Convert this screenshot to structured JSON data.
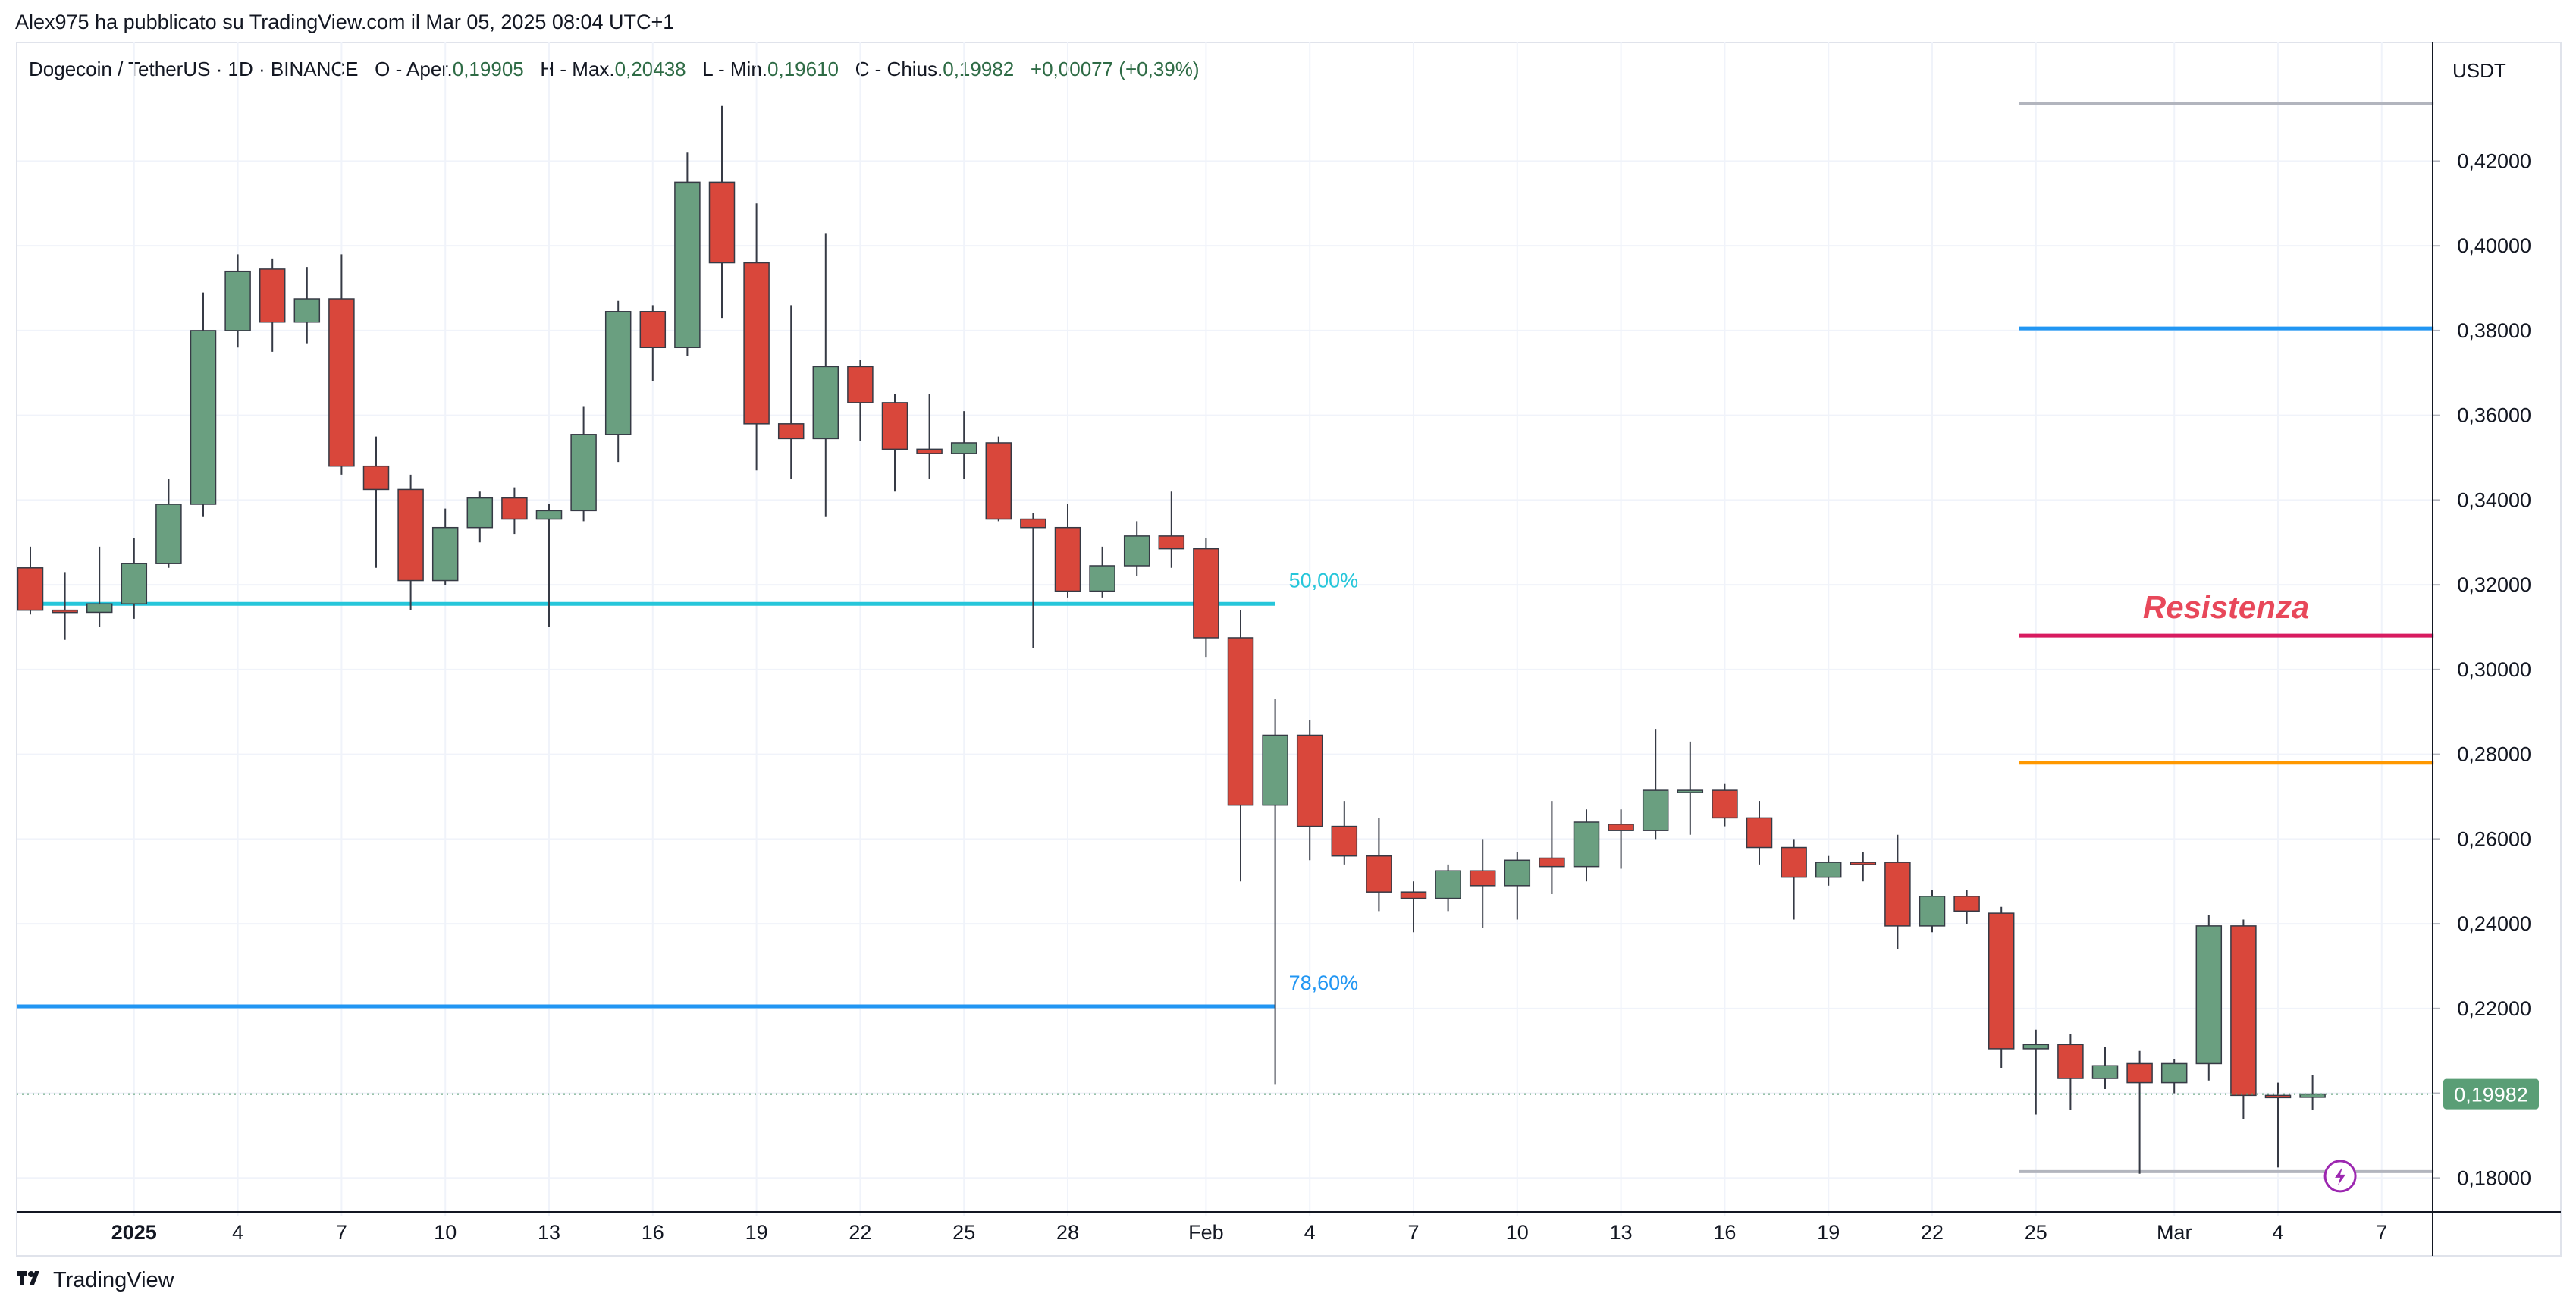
{
  "header": {
    "published_by": "Alex975 ha pubblicato su TradingView.com il Mar 05, 2025 08:04 UTC+1"
  },
  "legend": {
    "symbol": "Dogecoin / TetherUS · 1D · BINANCE",
    "open_label": "O - Aper.",
    "open_value": "0,19905",
    "high_label": "H - Max.",
    "high_value": "0,20438",
    "low_label": "L - Min.",
    "low_value": "0,19610",
    "close_label": "C - Chius.",
    "close_value": "0,19982",
    "change": "+0,00077 (+0,39%)"
  },
  "price_axis": {
    "currency": "USDT",
    "last_price_label": "0,19982"
  },
  "branding": {
    "name": "TradingView"
  },
  "chart_data": {
    "type": "candlestick",
    "title": "Dogecoin / TetherUS · 1D · BINANCE",
    "ylim": [
      0.172,
      0.448
    ],
    "y_ticks": [
      0.18,
      0.2,
      0.22,
      0.24,
      0.26,
      0.28,
      0.3,
      0.32,
      0.34,
      0.36,
      0.38,
      0.4,
      0.42
    ],
    "y_tick_labels": [
      "0,18000",
      "0,20000",
      "0,22000",
      "0,24000",
      "0,26000",
      "0,28000",
      "0,30000",
      "0,32000",
      "0,34000",
      "0,36000",
      "0,38000",
      "0,40000",
      "0,42000"
    ],
    "x_ticks": [
      {
        "index": 3,
        "label": "2025"
      },
      {
        "index": 6,
        "label": "4"
      },
      {
        "index": 9,
        "label": "7"
      },
      {
        "index": 12,
        "label": "10"
      },
      {
        "index": 15,
        "label": "13"
      },
      {
        "index": 18,
        "label": "16"
      },
      {
        "index": 21,
        "label": "19"
      },
      {
        "index": 24,
        "label": "22"
      },
      {
        "index": 27,
        "label": "25"
      },
      {
        "index": 30,
        "label": "28"
      },
      {
        "index": 34,
        "label": "Feb"
      },
      {
        "index": 37,
        "label": "4"
      },
      {
        "index": 40,
        "label": "7"
      },
      {
        "index": 43,
        "label": "10"
      },
      {
        "index": 46,
        "label": "13"
      },
      {
        "index": 49,
        "label": "16"
      },
      {
        "index": 52,
        "label": "19"
      },
      {
        "index": 55,
        "label": "22"
      },
      {
        "index": 58,
        "label": "25"
      },
      {
        "index": 62,
        "label": "Mar"
      },
      {
        "index": 65,
        "label": "4"
      },
      {
        "index": 68,
        "label": "7"
      }
    ],
    "candles": [
      {
        "o": 0.324,
        "h": 0.329,
        "l": 0.313,
        "c": 0.314
      },
      {
        "o": 0.314,
        "h": 0.323,
        "l": 0.307,
        "c": 0.3135
      },
      {
        "o": 0.3135,
        "h": 0.329,
        "l": 0.31,
        "c": 0.3155
      },
      {
        "o": 0.3155,
        "h": 0.331,
        "l": 0.312,
        "c": 0.325
      },
      {
        "o": 0.325,
        "h": 0.345,
        "l": 0.324,
        "c": 0.339
      },
      {
        "o": 0.339,
        "h": 0.389,
        "l": 0.336,
        "c": 0.38
      },
      {
        "o": 0.38,
        "h": 0.398,
        "l": 0.376,
        "c": 0.394
      },
      {
        "o": 0.3945,
        "h": 0.397,
        "l": 0.375,
        "c": 0.382
      },
      {
        "o": 0.382,
        "h": 0.395,
        "l": 0.377,
        "c": 0.3875
      },
      {
        "o": 0.3875,
        "h": 0.398,
        "l": 0.346,
        "c": 0.348
      },
      {
        "o": 0.348,
        "h": 0.355,
        "l": 0.324,
        "c": 0.3425
      },
      {
        "o": 0.3425,
        "h": 0.346,
        "l": 0.314,
        "c": 0.321
      },
      {
        "o": 0.321,
        "h": 0.338,
        "l": 0.32,
        "c": 0.3335
      },
      {
        "o": 0.3335,
        "h": 0.342,
        "l": 0.33,
        "c": 0.3405
      },
      {
        "o": 0.3405,
        "h": 0.343,
        "l": 0.332,
        "c": 0.3355
      },
      {
        "o": 0.3355,
        "h": 0.339,
        "l": 0.31,
        "c": 0.3375
      },
      {
        "o": 0.3375,
        "h": 0.362,
        "l": 0.335,
        "c": 0.3555
      },
      {
        "o": 0.3555,
        "h": 0.387,
        "l": 0.349,
        "c": 0.3845
      },
      {
        "o": 0.3845,
        "h": 0.386,
        "l": 0.368,
        "c": 0.376
      },
      {
        "o": 0.376,
        "h": 0.422,
        "l": 0.374,
        "c": 0.415
      },
      {
        "o": 0.415,
        "h": 0.433,
        "l": 0.383,
        "c": 0.396
      },
      {
        "o": 0.396,
        "h": 0.41,
        "l": 0.347,
        "c": 0.358
      },
      {
        "o": 0.358,
        "h": 0.386,
        "l": 0.345,
        "c": 0.3545
      },
      {
        "o": 0.3545,
        "h": 0.403,
        "l": 0.336,
        "c": 0.3715
      },
      {
        "o": 0.3715,
        "h": 0.373,
        "l": 0.354,
        "c": 0.363
      },
      {
        "o": 0.363,
        "h": 0.365,
        "l": 0.342,
        "c": 0.352
      },
      {
        "o": 0.352,
        "h": 0.365,
        "l": 0.345,
        "c": 0.351
      },
      {
        "o": 0.351,
        "h": 0.361,
        "l": 0.345,
        "c": 0.3535
      },
      {
        "o": 0.3535,
        "h": 0.355,
        "l": 0.335,
        "c": 0.3355
      },
      {
        "o": 0.3355,
        "h": 0.337,
        "l": 0.305,
        "c": 0.3335
      },
      {
        "o": 0.3335,
        "h": 0.339,
        "l": 0.317,
        "c": 0.3185
      },
      {
        "o": 0.3185,
        "h": 0.329,
        "l": 0.317,
        "c": 0.3245
      },
      {
        "o": 0.3245,
        "h": 0.335,
        "l": 0.322,
        "c": 0.3315
      },
      {
        "o": 0.3315,
        "h": 0.342,
        "l": 0.324,
        "c": 0.3285
      },
      {
        "o": 0.3285,
        "h": 0.331,
        "l": 0.303,
        "c": 0.3075
      },
      {
        "o": 0.3075,
        "h": 0.314,
        "l": 0.25,
        "c": 0.268
      },
      {
        "o": 0.268,
        "h": 0.293,
        "l": 0.202,
        "c": 0.2845
      },
      {
        "o": 0.2845,
        "h": 0.288,
        "l": 0.255,
        "c": 0.263
      },
      {
        "o": 0.263,
        "h": 0.269,
        "l": 0.254,
        "c": 0.256
      },
      {
        "o": 0.256,
        "h": 0.265,
        "l": 0.243,
        "c": 0.2475
      },
      {
        "o": 0.2475,
        "h": 0.25,
        "l": 0.238,
        "c": 0.246
      },
      {
        "o": 0.246,
        "h": 0.254,
        "l": 0.243,
        "c": 0.2525
      },
      {
        "o": 0.2525,
        "h": 0.26,
        "l": 0.239,
        "c": 0.249
      },
      {
        "o": 0.249,
        "h": 0.257,
        "l": 0.241,
        "c": 0.255
      },
      {
        "o": 0.2555,
        "h": 0.269,
        "l": 0.247,
        "c": 0.2535
      },
      {
        "o": 0.2535,
        "h": 0.267,
        "l": 0.25,
        "c": 0.264
      },
      {
        "o": 0.2635,
        "h": 0.267,
        "l": 0.253,
        "c": 0.262
      },
      {
        "o": 0.262,
        "h": 0.286,
        "l": 0.26,
        "c": 0.2715
      },
      {
        "o": 0.2715,
        "h": 0.283,
        "l": 0.261,
        "c": 0.2715
      },
      {
        "o": 0.2715,
        "h": 0.273,
        "l": 0.263,
        "c": 0.265
      },
      {
        "o": 0.265,
        "h": 0.269,
        "l": 0.254,
        "c": 0.258
      },
      {
        "o": 0.258,
        "h": 0.26,
        "l": 0.241,
        "c": 0.251
      },
      {
        "o": 0.251,
        "h": 0.256,
        "l": 0.249,
        "c": 0.2545
      },
      {
        "o": 0.2545,
        "h": 0.257,
        "l": 0.25,
        "c": 0.254
      },
      {
        "o": 0.2545,
        "h": 0.261,
        "l": 0.234,
        "c": 0.2395
      },
      {
        "o": 0.2395,
        "h": 0.248,
        "l": 0.238,
        "c": 0.2465
      },
      {
        "o": 0.2465,
        "h": 0.248,
        "l": 0.24,
        "c": 0.243
      },
      {
        "o": 0.2425,
        "h": 0.244,
        "l": 0.206,
        "c": 0.2105
      },
      {
        "o": 0.2105,
        "h": 0.215,
        "l": 0.195,
        "c": 0.2115
      },
      {
        "o": 0.2115,
        "h": 0.214,
        "l": 0.196,
        "c": 0.2035
      },
      {
        "o": 0.2035,
        "h": 0.211,
        "l": 0.201,
        "c": 0.2065
      },
      {
        "o": 0.207,
        "h": 0.21,
        "l": 0.181,
        "c": 0.2025
      },
      {
        "o": 0.2025,
        "h": 0.208,
        "l": 0.2,
        "c": 0.207
      },
      {
        "o": 0.207,
        "h": 0.242,
        "l": 0.203,
        "c": 0.2395
      },
      {
        "o": 0.2395,
        "h": 0.241,
        "l": 0.194,
        "c": 0.1995
      },
      {
        "o": 0.1995,
        "h": 0.2025,
        "l": 0.1825,
        "c": 0.19905
      },
      {
        "o": 0.19905,
        "h": 0.20438,
        "l": 0.1961,
        "c": 0.19982
      }
    ],
    "horizontal_levels": [
      {
        "name": "fib-50",
        "price": 0.3155,
        "color": "#26c6da",
        "label": "50,00%",
        "from_index": 0,
        "to_index": 36
      },
      {
        "name": "fib-786",
        "price": 0.2205,
        "color": "#2196f3",
        "label": "78,60%",
        "from_index": 0,
        "to_index": 36
      },
      {
        "name": "level-top",
        "price": 0.4335,
        "color": "#b2b5be",
        "label": "",
        "from_index": 57.5,
        "to_index": 69.5
      },
      {
        "name": "level-038",
        "price": 0.3805,
        "color": "#2196f3",
        "label": "",
        "from_index": 57.5,
        "to_index": 69.5
      },
      {
        "name": "resistenza",
        "price": 0.308,
        "color": "#d81b60",
        "label": "Resistenza",
        "from_index": 57.5,
        "to_index": 69.5
      },
      {
        "name": "level-0278",
        "price": 0.278,
        "color": "#ff9800",
        "label": "",
        "from_index": 57.5,
        "to_index": 69.5
      },
      {
        "name": "level-bottom",
        "price": 0.1815,
        "color": "#b2b5be",
        "label": "",
        "from_index": 57.5,
        "to_index": 69.5
      }
    ],
    "last_price": 0.19982,
    "colors": {
      "up": "#6a9f80",
      "down": "#d9473b",
      "wick": "#363a45",
      "grid": "#f0f3fa",
      "last": "#5a9e76"
    }
  }
}
